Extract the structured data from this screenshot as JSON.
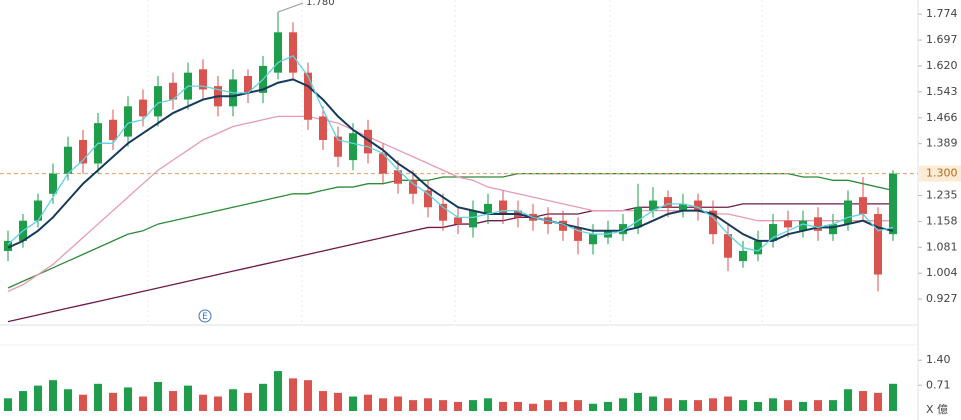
{
  "chart_data": {
    "type": "candlestick",
    "ylim": [
      0.85,
      1.816
    ],
    "yticks": [
      1.774,
      1.697,
      {
        "value": 1.62,
        "label": "1.620"
      },
      1.543,
      1.466,
      1.389,
      1.235,
      1.158,
      1.081,
      1.004,
      0.927
    ],
    "current_price": {
      "value": 1.3,
      "label": "1.300"
    },
    "annotations": [
      {
        "text": "1.780",
        "value": 1.78,
        "index": 18
      },
      {
        "text": "E",
        "index": 12
      }
    ],
    "up_color": "#1e9e4a",
    "down_color": "#d9534f",
    "open": [
      1.07,
      1.1,
      1.16,
      1.24,
      1.3,
      1.4,
      1.33,
      1.46,
      1.41,
      1.52,
      1.47,
      1.57,
      1.52,
      1.61,
      1.56,
      1.5,
      1.59,
      1.54,
      1.6,
      1.72,
      1.6,
      1.47,
      1.41,
      1.34,
      1.43,
      1.36,
      1.31,
      1.28,
      1.25,
      1.21,
      1.17,
      1.14,
      1.18,
      1.22,
      1.19,
      1.18,
      1.17,
      1.16,
      1.14,
      1.09,
      1.11,
      1.12,
      1.14,
      1.19,
      1.23,
      1.19,
      1.22,
      1.19,
      1.12,
      1.04,
      1.06,
      1.1,
      1.16,
      1.13,
      1.17,
      1.12,
      1.15,
      1.23,
      1.18,
      1.12
    ],
    "high": [
      1.13,
      1.18,
      1.24,
      1.33,
      1.41,
      1.43,
      1.48,
      1.49,
      1.53,
      1.55,
      1.59,
      1.6,
      1.63,
      1.64,
      1.59,
      1.61,
      1.61,
      1.65,
      1.78,
      1.75,
      1.63,
      1.5,
      1.44,
      1.45,
      1.46,
      1.39,
      1.34,
      1.31,
      1.28,
      1.24,
      1.2,
      1.22,
      1.24,
      1.25,
      1.22,
      1.21,
      1.2,
      1.19,
      1.17,
      1.15,
      1.16,
      1.18,
      1.27,
      1.26,
      1.25,
      1.24,
      1.24,
      1.22,
      1.15,
      1.1,
      1.13,
      1.18,
      1.19,
      1.19,
      1.2,
      1.18,
      1.25,
      1.29,
      1.2,
      1.31
    ],
    "low": [
      1.04,
      1.08,
      1.14,
      1.21,
      1.28,
      1.3,
      1.3,
      1.37,
      1.38,
      1.44,
      1.44,
      1.49,
      1.49,
      1.52,
      1.47,
      1.47,
      1.51,
      1.51,
      1.58,
      1.58,
      1.43,
      1.37,
      1.32,
      1.31,
      1.33,
      1.27,
      1.24,
      1.21,
      1.17,
      1.13,
      1.12,
      1.11,
      1.15,
      1.15,
      1.14,
      1.13,
      1.12,
      1.1,
      1.06,
      1.06,
      1.09,
      1.1,
      1.12,
      1.17,
      1.17,
      1.17,
      1.16,
      1.09,
      1.01,
      1.02,
      1.04,
      1.08,
      1.11,
      1.11,
      1.1,
      1.1,
      1.13,
      1.16,
      0.95,
      1.1
    ],
    "close": [
      1.1,
      1.16,
      1.22,
      1.3,
      1.38,
      1.33,
      1.45,
      1.4,
      1.5,
      1.47,
      1.56,
      1.52,
      1.6,
      1.55,
      1.5,
      1.58,
      1.54,
      1.62,
      1.72,
      1.6,
      1.46,
      1.4,
      1.35,
      1.42,
      1.36,
      1.3,
      1.27,
      1.24,
      1.2,
      1.16,
      1.15,
      1.19,
      1.21,
      1.18,
      1.17,
      1.16,
      1.15,
      1.13,
      1.1,
      1.12,
      1.13,
      1.15,
      1.2,
      1.22,
      1.2,
      1.21,
      1.19,
      1.12,
      1.05,
      1.07,
      1.1,
      1.15,
      1.14,
      1.16,
      1.13,
      1.15,
      1.22,
      1.18,
      1.0,
      1.3
    ],
    "series": [
      {
        "color": "#5fd3e0",
        "values": [
          1.09,
          1.13,
          1.16,
          1.23,
          1.3,
          1.34,
          1.39,
          1.39,
          1.45,
          1.46,
          1.51,
          1.52,
          1.56,
          1.56,
          1.55,
          1.54,
          1.54,
          1.58,
          1.63,
          1.65,
          1.59,
          1.49,
          1.4,
          1.39,
          1.38,
          1.36,
          1.31,
          1.27,
          1.24,
          1.2,
          1.17,
          1.17,
          1.18,
          1.19,
          1.19,
          1.17,
          1.16,
          1.15,
          1.13,
          1.12,
          1.12,
          1.13,
          1.16,
          1.19,
          1.21,
          1.21,
          1.2,
          1.17,
          1.12,
          1.08,
          1.07,
          1.11,
          1.13,
          1.15,
          1.14,
          1.15,
          1.17,
          1.18,
          1.13,
          1.14
        ]
      },
      {
        "color": "#163a5a",
        "values": [
          1.08,
          1.1,
          1.13,
          1.17,
          1.22,
          1.27,
          1.31,
          1.35,
          1.39,
          1.42,
          1.45,
          1.48,
          1.5,
          1.52,
          1.53,
          1.53,
          1.54,
          1.55,
          1.57,
          1.58,
          1.56,
          1.52,
          1.47,
          1.43,
          1.4,
          1.37,
          1.33,
          1.3,
          1.26,
          1.23,
          1.2,
          1.19,
          1.18,
          1.18,
          1.18,
          1.17,
          1.16,
          1.15,
          1.14,
          1.13,
          1.13,
          1.13,
          1.14,
          1.16,
          1.18,
          1.19,
          1.19,
          1.18,
          1.15,
          1.12,
          1.1,
          1.1,
          1.12,
          1.13,
          1.14,
          1.14,
          1.15,
          1.16,
          1.14,
          1.13
        ]
      },
      {
        "color": "#e89ab4",
        "values": [
          0.95,
          0.97,
          1.0,
          1.03,
          1.07,
          1.11,
          1.15,
          1.19,
          1.23,
          1.27,
          1.31,
          1.34,
          1.37,
          1.4,
          1.42,
          1.44,
          1.45,
          1.46,
          1.47,
          1.47,
          1.47,
          1.46,
          1.45,
          1.43,
          1.41,
          1.39,
          1.37,
          1.35,
          1.33,
          1.31,
          1.29,
          1.28,
          1.26,
          1.25,
          1.24,
          1.23,
          1.22,
          1.21,
          1.2,
          1.19,
          1.19,
          1.19,
          1.19,
          1.19,
          1.19,
          1.19,
          1.19,
          1.18,
          1.18,
          1.17,
          1.16,
          1.16,
          1.16,
          1.16,
          1.16,
          1.16,
          1.16,
          1.16,
          1.16,
          1.16
        ]
      },
      {
        "color": "#2e8b3a",
        "values": [
          0.96,
          0.98,
          1.0,
          1.02,
          1.04,
          1.06,
          1.08,
          1.1,
          1.12,
          1.13,
          1.15,
          1.16,
          1.17,
          1.18,
          1.19,
          1.2,
          1.21,
          1.22,
          1.23,
          1.24,
          1.24,
          1.25,
          1.26,
          1.26,
          1.27,
          1.27,
          1.28,
          1.28,
          1.28,
          1.29,
          1.29,
          1.29,
          1.29,
          1.29,
          1.3,
          1.3,
          1.3,
          1.3,
          1.3,
          1.3,
          1.3,
          1.3,
          1.3,
          1.3,
          1.3,
          1.3,
          1.3,
          1.3,
          1.3,
          1.3,
          1.3,
          1.3,
          1.3,
          1.29,
          1.29,
          1.28,
          1.28,
          1.27,
          1.26,
          1.25
        ]
      },
      {
        "color": "#6e1a4a",
        "values": [
          0.86,
          0.87,
          0.88,
          0.89,
          0.9,
          0.91,
          0.92,
          0.93,
          0.94,
          0.95,
          0.96,
          0.97,
          0.98,
          0.99,
          1.0,
          1.01,
          1.02,
          1.03,
          1.04,
          1.05,
          1.06,
          1.07,
          1.08,
          1.09,
          1.1,
          1.11,
          1.12,
          1.13,
          1.14,
          1.14,
          1.15,
          1.15,
          1.16,
          1.16,
          1.17,
          1.17,
          1.18,
          1.18,
          1.18,
          1.19,
          1.19,
          1.19,
          1.2,
          1.2,
          1.2,
          1.2,
          1.2,
          1.2,
          1.2,
          1.21,
          1.21,
          1.21,
          1.21,
          1.21,
          1.21,
          1.21,
          1.21,
          1.21,
          1.21,
          1.21
        ]
      }
    ],
    "volume": {
      "label": "X 億",
      "ylim": [
        0,
        1.82
      ],
      "yticks": [
        {
          "value": 1.4,
          "label": "1.40"
        },
        0.71
      ],
      "values": [
        0.35,
        0.55,
        0.7,
        0.85,
        0.6,
        0.45,
        0.75,
        0.5,
        0.65,
        0.4,
        0.8,
        0.55,
        0.7,
        0.45,
        0.4,
        0.6,
        0.5,
        0.75,
        1.1,
        0.9,
        0.85,
        0.55,
        0.5,
        0.4,
        0.45,
        0.35,
        0.4,
        0.3,
        0.35,
        0.3,
        0.25,
        0.3,
        0.35,
        0.25,
        0.25,
        0.2,
        0.3,
        0.25,
        0.3,
        0.2,
        0.25,
        0.35,
        0.5,
        0.4,
        0.35,
        0.3,
        0.3,
        0.35,
        0.4,
        0.3,
        0.25,
        0.35,
        0.3,
        0.25,
        0.3,
        0.3,
        0.6,
        0.55,
        0.5,
        0.75
      ]
    }
  }
}
